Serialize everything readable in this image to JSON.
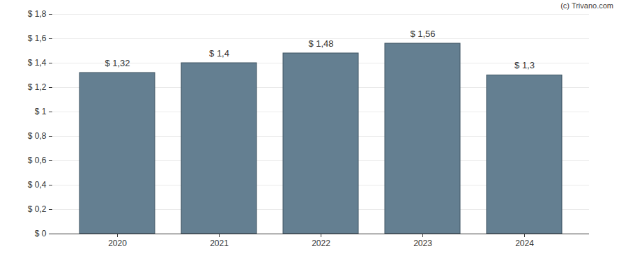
{
  "chart_data": {
    "type": "bar",
    "caption": "(c) Trivano.com",
    "categories": [
      "2020",
      "2021",
      "2022",
      "2023",
      "2024"
    ],
    "values": [
      1.32,
      1.4,
      1.48,
      1.56,
      1.3
    ],
    "value_labels": [
      "$ 1,32",
      "$ 1,4",
      "$ 1,48",
      "$ 1,56",
      "$ 1,3"
    ],
    "data_labels": true,
    "color": "#647f91",
    "ylim": [
      0,
      1.8
    ],
    "yticks": [
      {
        "value": 0,
        "label": "$ 0"
      },
      {
        "value": 0.2,
        "label": "$ 0,2"
      },
      {
        "value": 0.4,
        "label": "$ 0,4"
      },
      {
        "value": 0.6,
        "label": "$ 0,6"
      },
      {
        "value": 0.8,
        "label": "$ 0,8"
      },
      {
        "value": 1,
        "label": "$ 1"
      },
      {
        "value": 1.2,
        "label": "$ 1,2"
      },
      {
        "value": 1.4,
        "label": "$ 1,4"
      },
      {
        "value": 1.6,
        "label": "$ 1,6"
      },
      {
        "value": 1.8,
        "label": "$ 1,8"
      }
    ],
    "grid": true
  }
}
